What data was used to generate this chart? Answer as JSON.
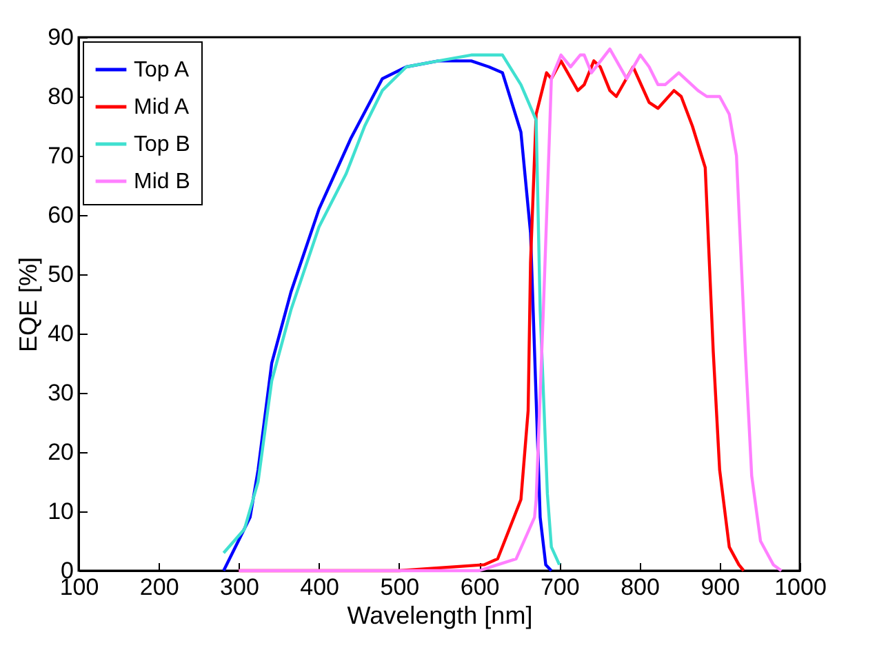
{
  "chart_data": {
    "type": "line",
    "xlabel": "Wavelength [nm]",
    "ylabel": "EQE [%]",
    "xlim": [
      100,
      1000
    ],
    "ylim": [
      0,
      90
    ],
    "xticks": [
      100,
      200,
      300,
      400,
      500,
      600,
      700,
      800,
      900,
      1000
    ],
    "yticks": [
      0,
      10,
      20,
      30,
      40,
      50,
      60,
      70,
      80,
      90
    ],
    "grid": false,
    "legend": "top left",
    "marker": "none",
    "line_style": "solid",
    "series": [
      {
        "name": "Top A",
        "color": "#0000ff",
        "x": [
          281,
          314,
          324,
          341,
          365,
          400,
          440,
          479,
          509,
          549,
          590,
          612,
          629,
          652,
          664,
          671,
          676,
          683,
          690
        ],
        "values": [
          0,
          9,
          17,
          35,
          47,
          61,
          73,
          83,
          85,
          86,
          86,
          85,
          84,
          74,
          57,
          29,
          9,
          1,
          0
        ]
      },
      {
        "name": "Mid A",
        "color": "#ff0000",
        "x": [
          300,
          400,
          500,
          606,
          623,
          652,
          661,
          664,
          671,
          684,
          690,
          702,
          723,
          731,
          743,
          751,
          763,
          771,
          792,
          812,
          823,
          843,
          852,
          866,
          882,
          892,
          900,
          912,
          924,
          930
        ],
        "values": [
          0,
          0,
          0,
          1,
          2,
          12,
          27,
          52,
          77,
          84,
          83,
          86,
          81,
          82,
          86,
          85,
          81,
          80,
          85,
          79,
          78,
          81,
          80,
          75,
          68,
          37,
          17,
          4,
          1,
          0
        ]
      },
      {
        "name": "Top B",
        "color": "#40e0d0",
        "x": [
          281,
          307,
          324,
          341,
          365,
          400,
          434,
          457,
          479,
          509,
          549,
          590,
          629,
          652,
          671,
          676,
          685,
          690,
          700
        ],
        "values": [
          3,
          7,
          15,
          32,
          44,
          58,
          67,
          75,
          81,
          85,
          86,
          87,
          87,
          82,
          76,
          44,
          13,
          4,
          1
        ]
      },
      {
        "name": "Mid B",
        "color": "#ff80ff",
        "x": [
          300,
          400,
          500,
          600,
          623,
          646,
          669,
          671,
          680,
          688,
          690,
          702,
          714,
          726,
          731,
          740,
          763,
          784,
          801,
          812,
          823,
          832,
          849,
          873,
          884,
          900,
          912,
          921,
          932,
          940,
          951,
          967,
          977
        ],
        "values": [
          0,
          0,
          0,
          0,
          1,
          2,
          9,
          12,
          44,
          75,
          83,
          87,
          85,
          87,
          87,
          84,
          88,
          83,
          87,
          85,
          82,
          82,
          84,
          81,
          80,
          80,
          77,
          70,
          37,
          16,
          5,
          1,
          0
        ]
      }
    ]
  }
}
